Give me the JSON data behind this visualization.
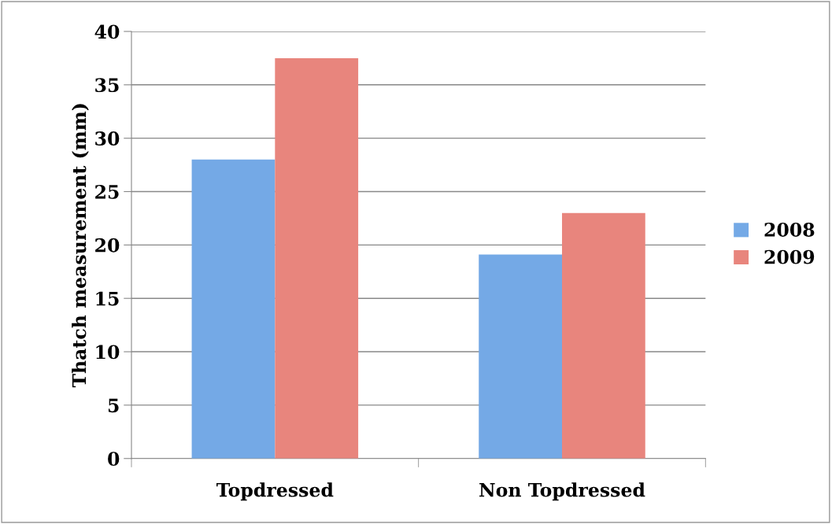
{
  "chart_data": {
    "type": "bar",
    "ylabel": "Thatch measurement (mm)",
    "categories": [
      "Topdressed",
      "Non Topdressed"
    ],
    "series": [
      {
        "name": "2008",
        "color": "#74a9e6",
        "values": [
          28.0,
          19.1
        ]
      },
      {
        "name": "2009",
        "color": "#e8857d",
        "values": [
          37.5,
          23.0
        ]
      }
    ],
    "ylim": [
      0,
      40
    ],
    "yticks": [
      0,
      5,
      10,
      15,
      20,
      25,
      30,
      35,
      40
    ],
    "grid": "y",
    "legend": "right"
  }
}
